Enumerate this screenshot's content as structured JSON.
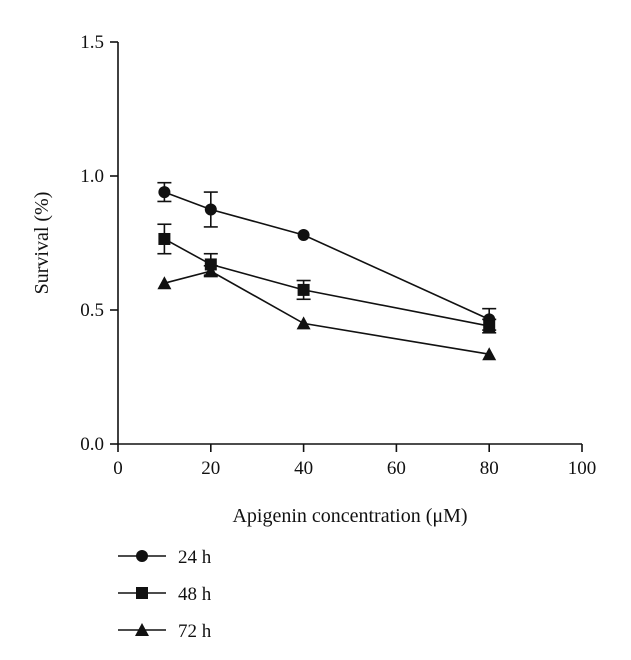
{
  "chart_data": {
    "type": "line",
    "title": "",
    "xlabel": "Apigenin concentration (μM)",
    "ylabel": "Survival (%)",
    "xlim": [
      0,
      100
    ],
    "ylim": [
      0.0,
      1.5
    ],
    "xticks": [
      0,
      20,
      40,
      60,
      80,
      100
    ],
    "yticks": [
      0.0,
      0.5,
      1.0,
      1.5
    ],
    "xtick_labels": [
      "0",
      "20",
      "40",
      "60",
      "80",
      "100"
    ],
    "ytick_labels": [
      "0.0",
      "0.5",
      "1.0",
      "1.5"
    ],
    "grid": false,
    "legend_position": "bottom-left, below plot",
    "series": [
      {
        "name": "24 h",
        "marker": "circle",
        "x": [
          10,
          20,
          40,
          80
        ],
        "y": [
          0.94,
          0.875,
          0.78,
          0.465
        ],
        "err": [
          0.035,
          0.065,
          0.0,
          0.04
        ]
      },
      {
        "name": "48 h",
        "marker": "square",
        "x": [
          10,
          20,
          40,
          80
        ],
        "y": [
          0.765,
          0.67,
          0.575,
          0.44
        ],
        "err": [
          0.055,
          0.04,
          0.035,
          0.025
        ]
      },
      {
        "name": "72 h",
        "marker": "triangle",
        "x": [
          10,
          20,
          40,
          80
        ],
        "y": [
          0.6,
          0.645,
          0.45,
          0.335
        ],
        "err": [
          0.0,
          0.02,
          0.0,
          0.0
        ]
      }
    ]
  }
}
